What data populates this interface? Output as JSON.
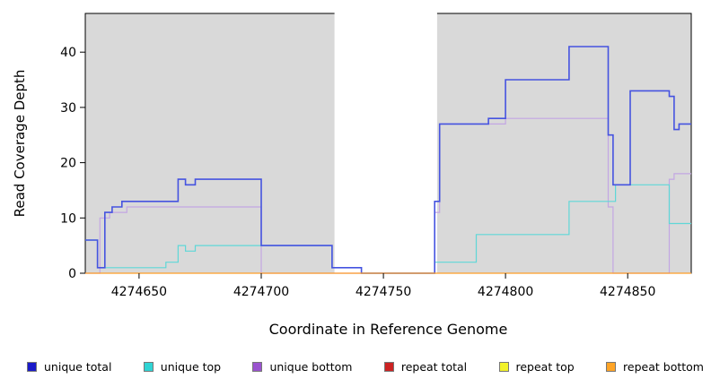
{
  "chart_data": {
    "type": "line",
    "title": "",
    "xlabel": "Coordinate in Reference Genome",
    "ylabel": "Read Coverage Depth",
    "xlim": [
      4274628,
      4274876
    ],
    "ylim": [
      0,
      47
    ],
    "x_ticks": [
      4274650,
      4274700,
      4274750,
      4274800,
      4274850
    ],
    "y_ticks": [
      0,
      10,
      20,
      30,
      40
    ],
    "plot_bg": "#d9d9d9",
    "grid": "off",
    "legend_position": "bottom",
    "uncovered_gap": {
      "start": 4274730,
      "end": 4274772
    },
    "series": [
      {
        "id": "repeat-total",
        "name": "repeat total",
        "color": "#cc2222",
        "width": 1,
        "steps": [
          [
            4274628,
            0
          ]
        ]
      },
      {
        "id": "repeat-top",
        "name": "repeat top",
        "color": "#f2f22a",
        "width": 1,
        "steps": [
          [
            4274628,
            0
          ]
        ]
      },
      {
        "id": "unique-bottom",
        "name": "unique bottom",
        "color": "#c3a6e3",
        "width": 1.2,
        "steps": [
          [
            4274628,
            0
          ],
          [
            4274634,
            10
          ],
          [
            4274638,
            11
          ],
          [
            4274645,
            12
          ],
          [
            4274700,
            0
          ],
          [
            4274771,
            11
          ],
          [
            4274773,
            27
          ],
          [
            4274800,
            28
          ],
          [
            4274842,
            12
          ],
          [
            4274844,
            0
          ],
          [
            4274867,
            17
          ],
          [
            4274869,
            18
          ]
        ]
      },
      {
        "id": "unique-top",
        "name": "unique top",
        "color": "#5fd7d7",
        "width": 1.2,
        "steps": [
          [
            4274628,
            6
          ],
          [
            4274633,
            1
          ],
          [
            4274661,
            2
          ],
          [
            4274666,
            5
          ],
          [
            4274669,
            4
          ],
          [
            4274673,
            5
          ],
          [
            4274729,
            1
          ],
          [
            4274741,
            0
          ],
          [
            4274771,
            2
          ],
          [
            4274788,
            7
          ],
          [
            4274826,
            13
          ],
          [
            4274845,
            16
          ],
          [
            4274867,
            9
          ]
        ]
      },
      {
        "id": "unique-total",
        "name": "unique total",
        "color": "#4553e0",
        "width": 1.6,
        "steps": [
          [
            4274628,
            6
          ],
          [
            4274633,
            1
          ],
          [
            4274636,
            11
          ],
          [
            4274639,
            12
          ],
          [
            4274643,
            13
          ],
          [
            4274666,
            17
          ],
          [
            4274669,
            16
          ],
          [
            4274673,
            17
          ],
          [
            4274700,
            5
          ],
          [
            4274729,
            1
          ],
          [
            4274741,
            0
          ],
          [
            4274771,
            13
          ],
          [
            4274773,
            27
          ],
          [
            4274793,
            28
          ],
          [
            4274800,
            35
          ],
          [
            4274826,
            41
          ],
          [
            4274842,
            25
          ],
          [
            4274844,
            16
          ],
          [
            4274851,
            33
          ],
          [
            4274867,
            32
          ],
          [
            4274869,
            26
          ],
          [
            4274871,
            27
          ]
        ]
      },
      {
        "id": "repeat-bottom",
        "name": "repeat bottom",
        "color": "#ff9d26",
        "width": 1.2,
        "steps": [
          [
            4274628,
            0
          ]
        ]
      }
    ],
    "legend": [
      {
        "label": "unique total",
        "color": "#1a1ac9"
      },
      {
        "label": "unique top",
        "color": "#2fd4d4"
      },
      {
        "label": "unique bottom",
        "color": "#9a53cf"
      },
      {
        "label": "repeat total",
        "color": "#cc2222"
      },
      {
        "label": "repeat top",
        "color": "#f2f22a"
      },
      {
        "label": "repeat bottom",
        "color": "#ffa426"
      }
    ]
  }
}
